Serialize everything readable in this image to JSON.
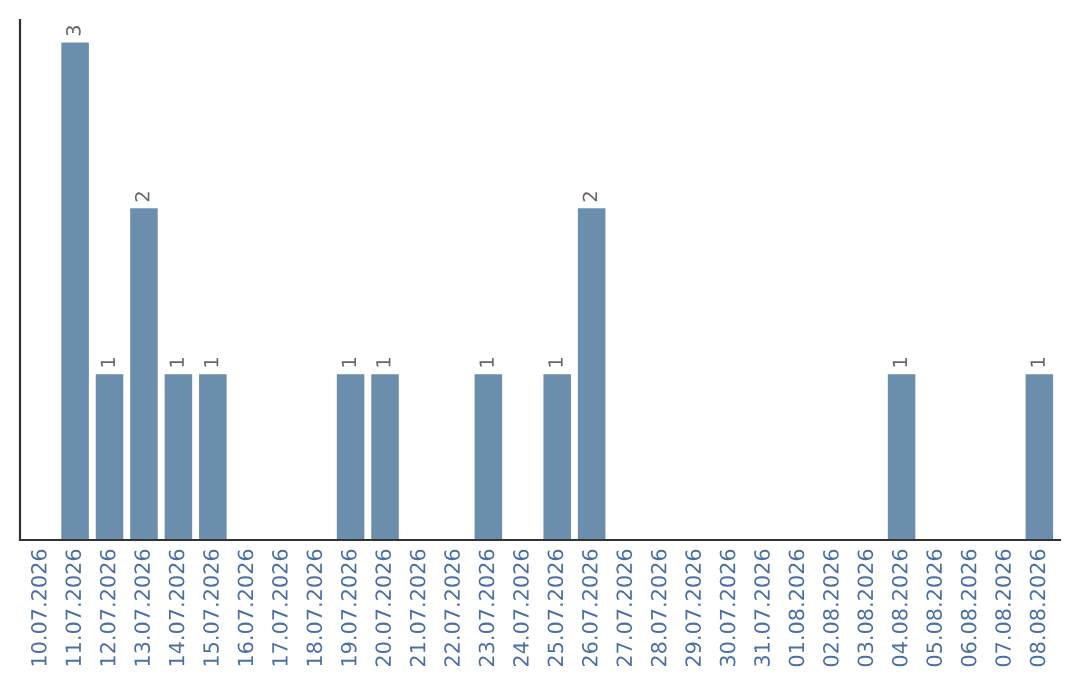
{
  "chart_data": {
    "type": "bar",
    "categories": [
      "10.07.2026",
      "11.07.2026",
      "12.07.2026",
      "13.07.2026",
      "14.07.2026",
      "15.07.2026",
      "16.07.2026",
      "17.07.2026",
      "18.07.2026",
      "19.07.2026",
      "20.07.2026",
      "21.07.2026",
      "22.07.2026",
      "23.07.2026",
      "24.07.2026",
      "25.07.2026",
      "26.07.2026",
      "27.07.2026",
      "28.07.2026",
      "29.07.2026",
      "30.07.2026",
      "31.07.2026",
      "01.08.2026",
      "02.08.2026",
      "03.08.2026",
      "04.08.2026",
      "05.08.2026",
      "06.08.2026",
      "07.08.2026",
      "08.08.2026"
    ],
    "values": [
      0,
      3,
      1,
      2,
      1,
      1,
      0,
      0,
      0,
      1,
      1,
      0,
      0,
      1,
      0,
      1,
      2,
      0,
      0,
      0,
      0,
      0,
      0,
      0,
      0,
      1,
      0,
      0,
      0,
      1
    ],
    "value_labels": [
      null,
      "3",
      "1",
      "2",
      "1",
      "1",
      null,
      null,
      null,
      "1",
      "1",
      null,
      null,
      "1",
      null,
      "1",
      "2",
      null,
      null,
      null,
      null,
      null,
      null,
      null,
      null,
      "1",
      null,
      null,
      null,
      "1"
    ],
    "color": "#6c8ead",
    "grid": false,
    "legend": false
  }
}
